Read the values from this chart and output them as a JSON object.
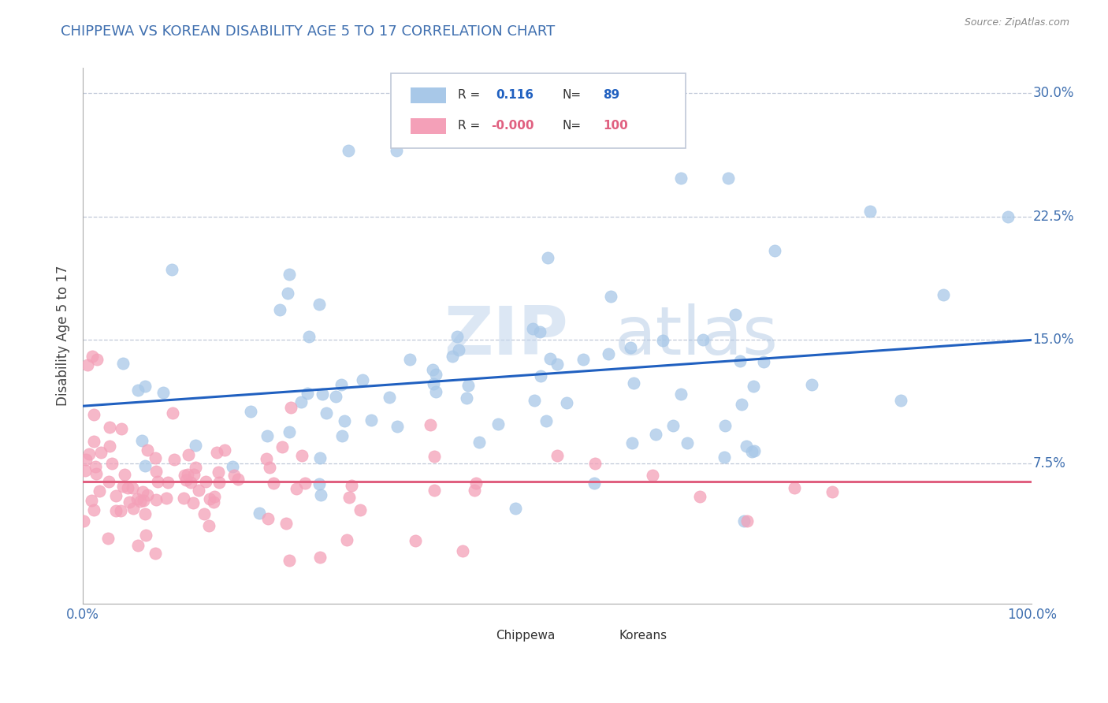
{
  "title": "CHIPPEWA VS KOREAN DISABILITY AGE 5 TO 17 CORRELATION CHART",
  "source_text": "Source: ZipAtlas.com",
  "ylabel": "Disability Age 5 to 17",
  "x_min": 0.0,
  "x_max": 1.0,
  "y_min": -0.01,
  "y_max": 0.315,
  "y_ticks": [
    0.075,
    0.15,
    0.225,
    0.3
  ],
  "y_tick_labels": [
    "7.5%",
    "15.0%",
    "22.5%",
    "30.0%"
  ],
  "x_ticks": [
    0.0,
    1.0
  ],
  "x_tick_labels": [
    "0.0%",
    "100.0%"
  ],
  "chippewa_R": "0.116",
  "chippewa_N": "89",
  "korean_R": "-0.000",
  "korean_N": "100",
  "chippewa_color": "#a8c8e8",
  "korean_color": "#f4a0b8",
  "chippewa_line_color": "#2060c0",
  "korean_line_color": "#e06080",
  "grid_color": "#c0c8d8",
  "background_color": "#ffffff",
  "title_color": "#4070b0",
  "watermark_zip_color": "#c8d8ec",
  "watermark_atlas_color": "#b8c8dc",
  "tick_color": "#4070b0",
  "ylabel_color": "#444444",
  "source_color": "#888888",
  "legend_border_color": "#c0c8d8",
  "legend_text_color": "#333333"
}
